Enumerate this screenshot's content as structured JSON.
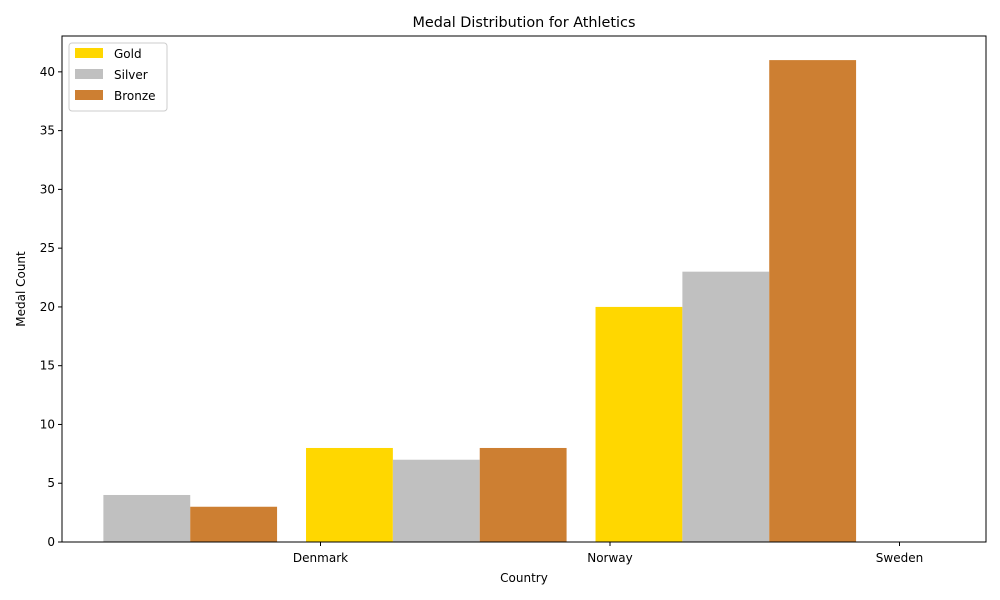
{
  "chart_data": {
    "type": "bar",
    "title": "Medal Distribution for Athletics",
    "xlabel": "Country",
    "ylabel": "Medal Count",
    "categories": [
      "Denmark",
      "Norway",
      "Sweden"
    ],
    "series": [
      {
        "name": "Gold",
        "values": [
          0,
          8,
          20
        ],
        "color": "#FFD700"
      },
      {
        "name": "Silver",
        "values": [
          4,
          7,
          23
        ],
        "color": "#C0C0C0"
      },
      {
        "name": "Bronze",
        "values": [
          3,
          8,
          41
        ],
        "color": "#CD7F32"
      }
    ],
    "ylim": [
      0,
      43.05
    ],
    "yticks": [
      0,
      5,
      10,
      15,
      20,
      25,
      30,
      35,
      40
    ],
    "grid": false,
    "legend": "top-left"
  }
}
